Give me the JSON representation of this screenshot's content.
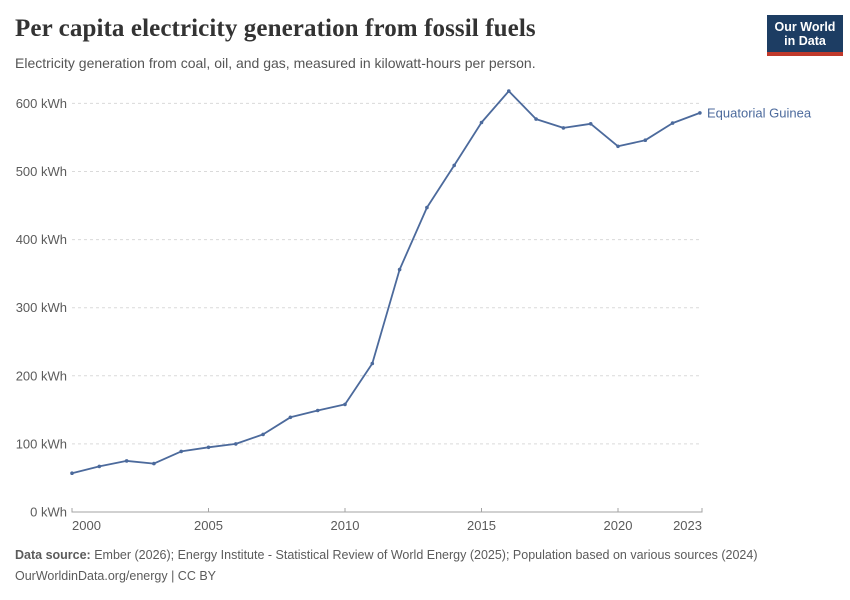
{
  "header": {
    "title": "Per capita electricity generation from fossil fuels",
    "subtitle": "Electricity generation from coal, oil, and gas, measured in kilowatt-hours per person.",
    "logo": {
      "line1": "Our World",
      "line2": "in Data",
      "bg_color": "#1d3d63",
      "accent_color": "#c0392b"
    }
  },
  "chart_data": {
    "type": "line",
    "title": "Per capita electricity generation from fossil fuels",
    "xlabel": "",
    "ylabel": "",
    "x": [
      2000,
      2001,
      2002,
      2003,
      2004,
      2005,
      2006,
      2007,
      2008,
      2009,
      2010,
      2011,
      2012,
      2013,
      2014,
      2015,
      2016,
      2017,
      2018,
      2019,
      2020,
      2021,
      2022,
      2023
    ],
    "series": [
      {
        "name": "Equatorial Guinea",
        "color": "#4c6a9c",
        "values": [
          57,
          67,
          75,
          71,
          89,
          95,
          100,
          114,
          139,
          149,
          158,
          218,
          356,
          447,
          509,
          572,
          618,
          577,
          564,
          570,
          537,
          546,
          571,
          586
        ]
      }
    ],
    "xlim": [
      2000,
      2023
    ],
    "ylim": [
      0,
      627
    ],
    "xticks": [
      2000,
      2005,
      2010,
      2015,
      2020,
      2023
    ],
    "yticks": [
      0,
      100,
      200,
      300,
      400,
      500,
      600
    ],
    "y_unit": " kWh",
    "grid": "horizontal dashed",
    "legend_position": "end-of-line label"
  },
  "footer": {
    "data_source_label": "Data source:",
    "data_source_text": " Ember (2026); Energy Institute - Statistical Review of World Energy (2025); Population based on various sources (2024)",
    "license_line": "OurWorldinData.org/energy | CC BY"
  }
}
